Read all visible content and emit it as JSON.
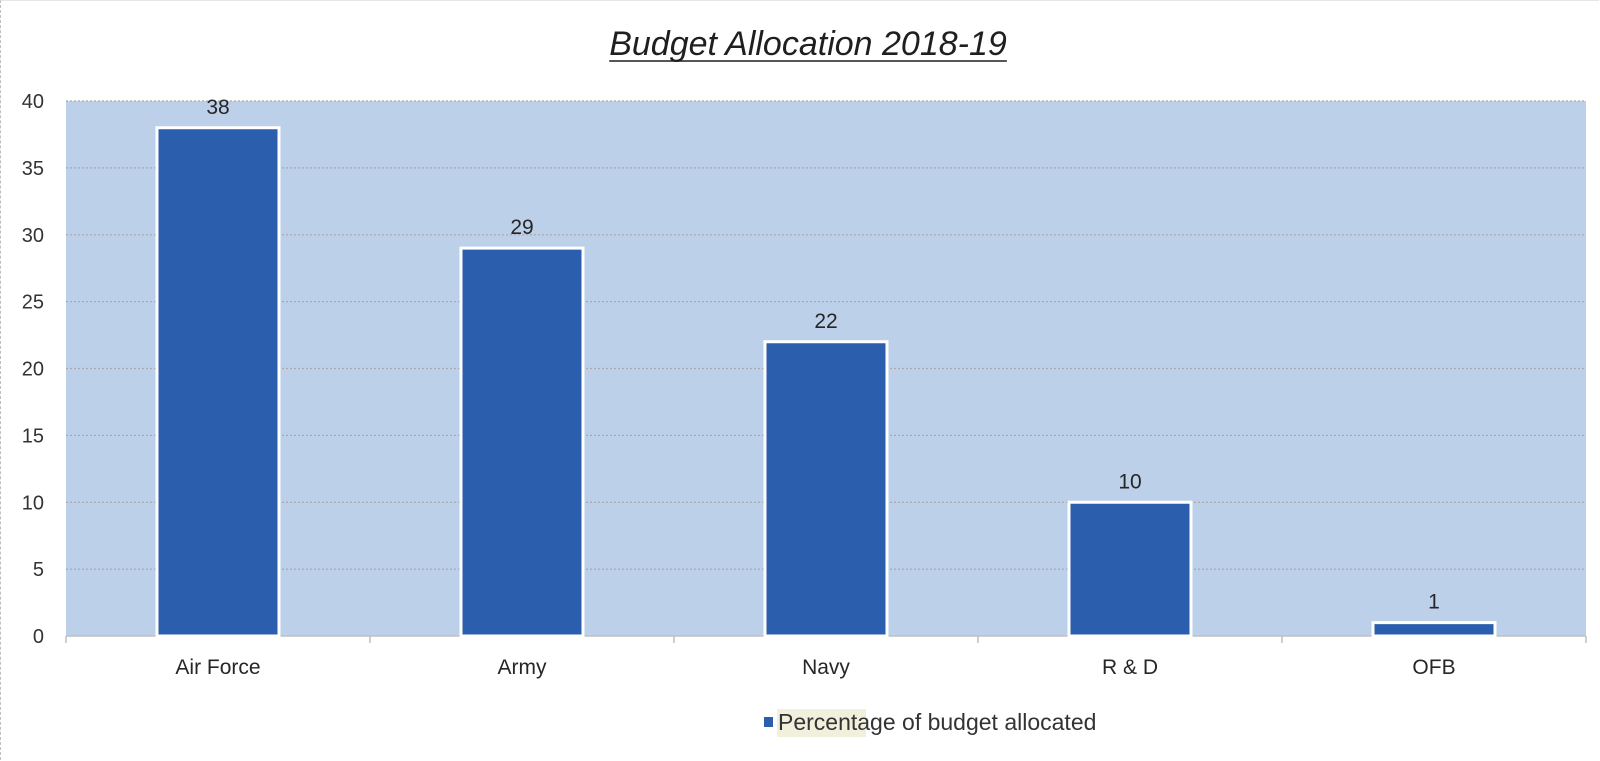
{
  "chart_data": {
    "type": "bar",
    "title": "Budget Allocation 2018-19",
    "xlabel": "",
    "ylabel": "",
    "categories": [
      "Air Force",
      "Army",
      "Navy",
      "R & D",
      "OFB"
    ],
    "series": [
      {
        "name": "Percentage of budget allocated",
        "values": [
          38,
          29,
          22,
          10,
          1
        ]
      }
    ],
    "data_labels": [
      "38",
      "29",
      "22",
      "10",
      "1"
    ],
    "ylim": [
      0,
      40
    ],
    "yticks": [
      0,
      5,
      10,
      15,
      20,
      25,
      30,
      35,
      40
    ],
    "grid": true,
    "legend_position": "bottom",
    "colors": {
      "bar": "#2b5fae",
      "bar_outline": "#ffffff",
      "plot_background": "#bcd0ea",
      "gridline": "#a9a9a9",
      "legend_highlight": "#f1f0dc"
    }
  }
}
